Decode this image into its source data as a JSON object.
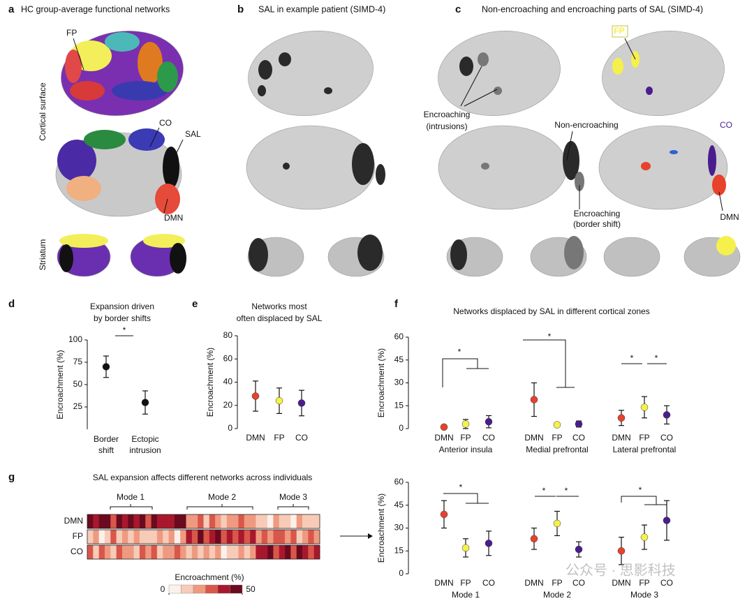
{
  "panels": {
    "a": {
      "label": "a",
      "title": "HC group-average functional networks",
      "row_labels": [
        "Cortical surface",
        "Striatum"
      ],
      "annotations": [
        "FP",
        "CO",
        "SAL",
        "DMN"
      ]
    },
    "b": {
      "label": "b",
      "title": "SAL in example patient (SIMD-4)"
    },
    "c": {
      "label": "c",
      "title": "Non-encroaching and encroaching parts of SAL (SIMD-4)",
      "annotations": [
        "FP",
        [
          "Encroaching",
          "(intrusions)"
        ],
        "Non-encroaching",
        "CO",
        [
          "Encroaching",
          "(border shift)"
        ],
        "DMN"
      ]
    }
  },
  "watermark": "公众号 · 思影科技",
  "chart_data": [
    {
      "type": "dot",
      "label": "d",
      "title": [
        "Expansion driven",
        "by border shifts"
      ],
      "y_label": "Encroachment (%)",
      "categories": [
        [
          "Border",
          "shift"
        ],
        [
          "Ectopic",
          "intrusion"
        ]
      ],
      "values": [
        70,
        30
      ],
      "errors": [
        12,
        13
      ],
      "colors": [
        "#111111",
        "#111111"
      ],
      "ylim": [
        0,
        100
      ],
      "yticks": [
        25,
        50,
        75,
        100
      ],
      "annotations": [
        "*"
      ]
    },
    {
      "type": "dot",
      "label": "e",
      "title": [
        "Networks most",
        "often displaced by SAL"
      ],
      "y_label": "Encroachment (%)",
      "categories": [
        "DMN",
        "FP",
        "CO"
      ],
      "values": [
        28,
        24,
        22
      ],
      "errors": [
        13,
        11,
        11
      ],
      "colors": [
        "#e8412c",
        "#f5f04c",
        "#4a1d8e"
      ],
      "ylim": [
        0,
        80
      ],
      "yticks": [
        0,
        20,
        40,
        60,
        80
      ]
    },
    {
      "type": "grouped-dot",
      "label": "f",
      "title": "Networks displaced by SAL in different cortical zones",
      "y_label": "Encroachment (%)",
      "colors": [
        "#e8412c",
        "#f5f04c",
        "#4a1d8e"
      ],
      "ylim": [
        0,
        60
      ],
      "yticks": [
        0,
        15,
        30,
        45,
        60
      ],
      "groups": [
        {
          "name": "Anterior insula",
          "categories": [
            "DMN",
            "FP",
            "CO"
          ],
          "values": [
            1,
            3,
            4.5
          ],
          "errors": [
            1,
            3,
            4
          ]
        },
        {
          "name": "Medial prefrontal",
          "categories": [
            "DMN",
            "FP",
            "CO"
          ],
          "values": [
            19,
            2.5,
            3
          ],
          "errors": [
            11,
            1,
            2
          ]
        },
        {
          "name": "Lateral prefrontal",
          "categories": [
            "DMN",
            "FP",
            "CO"
          ],
          "values": [
            7,
            14,
            9
          ],
          "errors": [
            5,
            7,
            6
          ]
        }
      ],
      "annotations": [
        "*",
        "*",
        "*",
        "*"
      ]
    },
    {
      "type": "heatmap",
      "label": "g",
      "title": "SAL expansion affects different networks across individuals",
      "mode_labels": [
        "Mode 1",
        "Mode 2",
        "Mode 3"
      ],
      "colorbar_label": "Encroachment (%)",
      "zlim": [
        0,
        50
      ],
      "colorbar_ticks": [
        0,
        50
      ],
      "colormap": [
        "#fdf0ea",
        "#f7cbb8",
        "#ef9a80",
        "#d9574a",
        "#a8182c",
        "#6b0a1e"
      ],
      "series": [
        {
          "name": "DMN",
          "values": [
            45,
            38,
            50,
            42,
            30,
            47,
            35,
            44,
            40,
            48,
            33,
            46,
            39,
            41,
            36,
            49,
            43,
            22,
            18,
            25,
            15,
            28,
            20,
            12,
            24,
            19,
            26,
            17,
            23,
            10,
            14,
            8,
            20,
            12,
            16,
            6,
            18,
            11,
            13,
            9
          ]
        },
        {
          "name": "FP",
          "values": [
            12,
            20,
            8,
            15,
            25,
            10,
            18,
            14,
            22,
            9,
            16,
            11,
            19,
            13,
            24,
            7,
            17,
            38,
            30,
            42,
            28,
            35,
            45,
            33,
            40,
            26,
            37,
            31,
            36,
            22,
            28,
            18,
            30,
            25,
            20,
            27,
            15,
            24,
            29,
            21
          ]
        },
        {
          "name": "CO",
          "values": [
            25,
            15,
            30,
            20,
            12,
            28,
            18,
            22,
            10,
            26,
            17,
            32,
            14,
            24,
            19,
            27,
            21,
            15,
            20,
            10,
            18,
            12,
            22,
            8,
            16,
            14,
            19,
            11,
            17,
            40,
            35,
            45,
            30,
            38,
            42,
            33,
            48,
            36,
            28,
            39
          ]
        }
      ]
    },
    {
      "type": "grouped-dot",
      "y_label": "Encroachment (%)",
      "colors": [
        "#e8412c",
        "#f5f04c",
        "#4a1d8e"
      ],
      "ylim": [
        0,
        60
      ],
      "yticks": [
        0,
        15,
        30,
        45,
        60
      ],
      "groups": [
        {
          "name": "Mode 1",
          "categories": [
            "DMN",
            "FP",
            "CO"
          ],
          "values": [
            39,
            17,
            20
          ],
          "errors": [
            9,
            6,
            8
          ]
        },
        {
          "name": "Mode 2",
          "categories": [
            "DMN",
            "FP",
            "CO"
          ],
          "values": [
            23,
            33,
            16
          ],
          "errors": [
            7,
            8,
            5
          ]
        },
        {
          "name": "Mode 3",
          "categories": [
            "DMN",
            "FP",
            "CO"
          ],
          "values": [
            15,
            24,
            35
          ],
          "errors": [
            9,
            8,
            13
          ]
        }
      ],
      "annotations": [
        "*",
        "*",
        "*",
        "*"
      ]
    }
  ]
}
